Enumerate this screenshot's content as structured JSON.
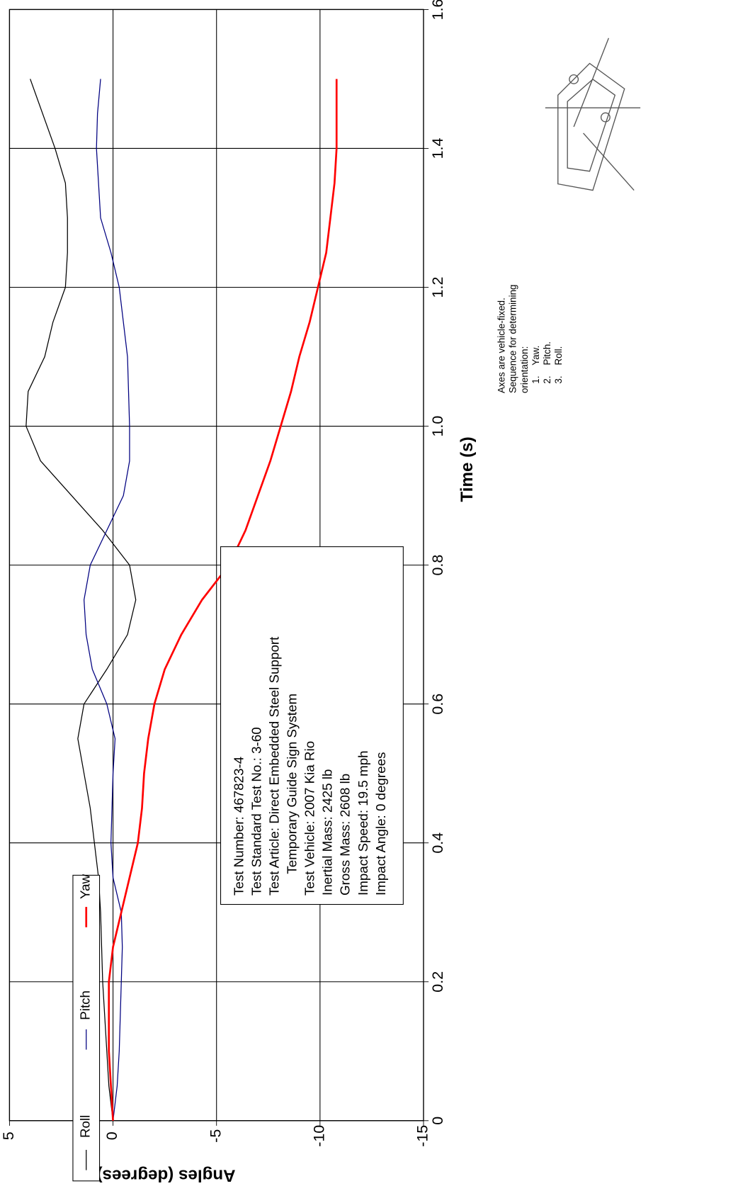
{
  "chart_data": {
    "type": "line",
    "xlabel": "Time (s)",
    "ylabel": "Angles (degrees)",
    "x": [
      0,
      0.05,
      0.1,
      0.15,
      0.2,
      0.25,
      0.3,
      0.35,
      0.4,
      0.45,
      0.5,
      0.55,
      0.6,
      0.65,
      0.7,
      0.75,
      0.8,
      0.85,
      0.9,
      0.95,
      1.0,
      1.05,
      1.1,
      1.15,
      1.2,
      1.25,
      1.3,
      1.35,
      1.4,
      1.45,
      1.5
    ],
    "series": [
      {
        "name": "Roll",
        "color": "#000000",
        "values": [
          0,
          0.2,
          0.3,
          0.4,
          0.5,
          0.55,
          0.6,
          0.7,
          0.9,
          1.1,
          1.4,
          1.7,
          1.4,
          0.3,
          -0.7,
          -1.1,
          -0.8,
          0.5,
          2.0,
          3.5,
          4.2,
          4.1,
          3.3,
          2.9,
          2.3,
          2.2,
          2.2,
          2.3,
          2.8,
          3.4,
          4.0
        ]
      },
      {
        "name": "Pitch",
        "color": "#000080",
        "values": [
          0,
          -0.2,
          -0.3,
          -0.35,
          -0.4,
          -0.45,
          -0.4,
          0,
          0.1,
          0.05,
          0,
          -0.1,
          0.3,
          1.0,
          1.3,
          1.4,
          1.1,
          0.3,
          -0.5,
          -0.8,
          -0.8,
          -0.75,
          -0.7,
          -0.5,
          -0.3,
          0.1,
          0.6,
          0.7,
          0.8,
          0.75,
          0.6
        ]
      },
      {
        "name": "Yaw",
        "color": "#ff0000",
        "values": [
          0,
          0.1,
          0.2,
          0.2,
          0.2,
          0,
          -0.4,
          -0.8,
          -1.2,
          -1.4,
          -1.5,
          -1.7,
          -2.0,
          -2.5,
          -3.3,
          -4.3,
          -5.6,
          -6.4,
          -7.0,
          -7.6,
          -8.1,
          -8.6,
          -9.0,
          -9.5,
          -9.9,
          -10.3,
          -10.5,
          -10.7,
          -10.8,
          -10.8,
          -10.8
        ]
      }
    ],
    "xlim": [
      0,
      1.6
    ],
    "xticks": [
      0,
      0.2,
      0.4,
      0.6,
      0.8,
      {
        "value": 1,
        "label": "1.0"
      },
      1.2,
      1.4,
      1.6
    ],
    "ylim": [
      -15,
      5
    ],
    "yticks": [
      5,
      0,
      -5,
      -10,
      -15
    ],
    "grid": true,
    "annotations": [
      "Test Number:  467823-4",
      "Test Standard Test No.:  3-60",
      "Test Article:  Direct Embedded Steel Support",
      "Temporary Guide Sign System",
      "Test Vehicle:  2007 Kia Rio",
      "Inertial Mass:  2425 lb",
      "Gross Mass:  2608 lb",
      "Impact Speed:  19.5 mph",
      "Impact Angle:  0 degrees"
    ],
    "notes": [
      "Axes are vehicle-fixed.",
      "Sequence for determining",
      "orientation:",
      "1.    Yaw.",
      "2.    Pitch.",
      "3.    Roll."
    ]
  }
}
